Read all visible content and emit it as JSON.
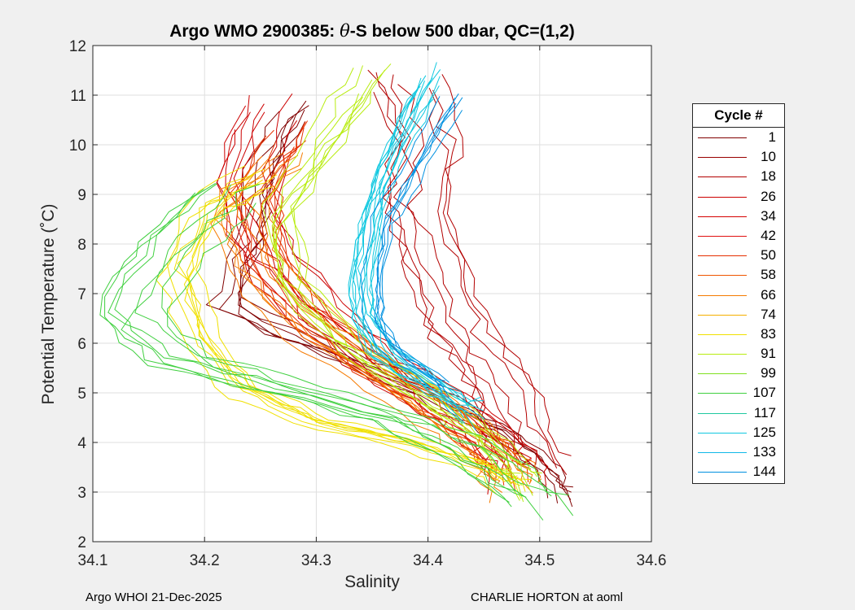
{
  "chart_data": {
    "type": "line",
    "title_prefix": "Argo WMO 2900385: ",
    "title_theta": "θ",
    "title_suffix": "-S below 500 dbar,  QC=(1,2)",
    "xlabel": "Salinity",
    "ylabel": "Potential Temperature (˚C)",
    "xlim": [
      34.1,
      34.6
    ],
    "ylim": [
      2,
      12
    ],
    "xticks": [
      "34.1",
      "34.2",
      "34.3",
      "34.4",
      "34.5",
      "34.6"
    ],
    "yticks": [
      "2",
      "3",
      "4",
      "5",
      "6",
      "7",
      "8",
      "9",
      "10",
      "11",
      "12"
    ],
    "grid": true,
    "legend_title": "Cycle #",
    "legend_position": "right-outside",
    "legend": [
      {
        "label": "1",
        "color": "#800000"
      },
      {
        "label": "10",
        "color": "#990000"
      },
      {
        "label": "18",
        "color": "#b30000"
      },
      {
        "label": "26",
        "color": "#cc0000"
      },
      {
        "label": "34",
        "color": "#d60000"
      },
      {
        "label": "42",
        "color": "#e01010"
      },
      {
        "label": "50",
        "color": "#e53000"
      },
      {
        "label": "58",
        "color": "#ef5500"
      },
      {
        "label": "66",
        "color": "#f57a00"
      },
      {
        "label": "74",
        "color": "#f5b000"
      },
      {
        "label": "83",
        "color": "#f0e000"
      },
      {
        "label": "91",
        "color": "#b8ec10"
      },
      {
        "label": "99",
        "color": "#80e020"
      },
      {
        "label": "107",
        "color": "#40d040"
      },
      {
        "label": "117",
        "color": "#20c8a0"
      },
      {
        "label": "125",
        "color": "#10c8e0"
      },
      {
        "label": "133",
        "color": "#10b8e8"
      },
      {
        "label": "144",
        "color": "#0090e0"
      }
    ],
    "series_groups": [
      {
        "color": "#800000",
        "count": 6,
        "spread_s": 0.025,
        "spread_t": 0.4,
        "points": [
          [
            34.28,
            10.8
          ],
          [
            34.25,
            9.6
          ],
          [
            34.24,
            8.2
          ],
          [
            34.22,
            6.8
          ],
          [
            34.32,
            5.8
          ],
          [
            34.4,
            5.0
          ],
          [
            34.46,
            4.3
          ],
          [
            34.5,
            3.6
          ],
          [
            34.52,
            3.0
          ]
        ]
      },
      {
        "color": "#b30000",
        "count": 8,
        "spread_s": 0.03,
        "spread_t": 0.3,
        "points": [
          [
            34.38,
            11.3
          ],
          [
            34.4,
            10.0
          ],
          [
            34.39,
            8.8
          ],
          [
            34.41,
            7.5
          ],
          [
            34.43,
            6.3
          ],
          [
            34.46,
            5.4
          ],
          [
            34.48,
            4.4
          ],
          [
            34.5,
            3.6
          ]
        ]
      },
      {
        "color": "#cc0000",
        "count": 8,
        "spread_s": 0.03,
        "spread_t": 0.4,
        "points": [
          [
            34.26,
            10.7
          ],
          [
            34.24,
            9.2
          ],
          [
            34.26,
            7.8
          ],
          [
            34.31,
            6.6
          ],
          [
            34.37,
            5.5
          ],
          [
            34.43,
            4.6
          ],
          [
            34.47,
            3.9
          ],
          [
            34.48,
            3.3
          ]
        ]
      },
      {
        "color": "#e53000",
        "count": 8,
        "spread_s": 0.025,
        "spread_t": 0.3,
        "points": [
          [
            34.28,
            10.2
          ],
          [
            34.25,
            9.0
          ],
          [
            34.26,
            7.6
          ],
          [
            34.3,
            6.4
          ],
          [
            34.36,
            5.4
          ],
          [
            34.42,
            4.6
          ],
          [
            34.46,
            3.9
          ],
          [
            34.48,
            3.3
          ]
        ]
      },
      {
        "color": "#f57a00",
        "count": 8,
        "spread_s": 0.025,
        "spread_t": 0.3,
        "points": [
          [
            34.27,
            9.6
          ],
          [
            34.23,
            8.6
          ],
          [
            34.25,
            7.4
          ],
          [
            34.3,
            6.2
          ],
          [
            34.37,
            5.2
          ],
          [
            34.43,
            4.3
          ],
          [
            34.47,
            3.5
          ],
          [
            34.48,
            3.0
          ]
        ]
      },
      {
        "color": "#f0e000",
        "count": 8,
        "spread_s": 0.02,
        "spread_t": 0.3,
        "points": [
          [
            34.25,
            9.3
          ],
          [
            34.2,
            8.6
          ],
          [
            34.18,
            7.4
          ],
          [
            34.2,
            6.0
          ],
          [
            34.24,
            5.0
          ],
          [
            34.3,
            4.4
          ],
          [
            34.38,
            4.0
          ],
          [
            34.45,
            3.5
          ],
          [
            34.48,
            3.1
          ]
        ]
      },
      {
        "color": "#b8ec10",
        "count": 8,
        "spread_s": 0.025,
        "spread_t": 0.4,
        "points": [
          [
            34.34,
            11.4
          ],
          [
            34.3,
            10.0
          ],
          [
            34.26,
            8.6
          ],
          [
            34.27,
            7.2
          ],
          [
            34.32,
            6.0
          ],
          [
            34.39,
            5.0
          ],
          [
            34.45,
            4.0
          ],
          [
            34.48,
            3.2
          ]
        ]
      },
      {
        "color": "#40d040",
        "count": 8,
        "spread_s": 0.03,
        "spread_t": 0.3,
        "points": [
          [
            34.22,
            9.0
          ],
          [
            34.17,
            8.0
          ],
          [
            34.13,
            6.5
          ],
          [
            34.18,
            5.6
          ],
          [
            34.28,
            5.0
          ],
          [
            34.38,
            4.4
          ],
          [
            34.45,
            3.6
          ],
          [
            34.5,
            2.7
          ]
        ]
      },
      {
        "color": "#10c8e0",
        "count": 12,
        "spread_s": 0.012,
        "spread_t": 0.35,
        "points": [
          [
            34.4,
            11.3
          ],
          [
            34.37,
            10.0
          ],
          [
            34.35,
            8.8
          ],
          [
            34.34,
            7.6
          ],
          [
            34.34,
            6.6
          ],
          [
            34.36,
            5.8
          ],
          [
            34.4,
            5.2
          ],
          [
            34.44,
            4.6
          ]
        ]
      },
      {
        "color": "#0090e0",
        "count": 6,
        "spread_s": 0.01,
        "spread_t": 0.3,
        "points": [
          [
            34.42,
            11.0
          ],
          [
            34.39,
            9.8
          ],
          [
            34.36,
            8.6
          ],
          [
            34.35,
            7.4
          ],
          [
            34.35,
            6.5
          ],
          [
            34.37,
            5.8
          ],
          [
            34.41,
            5.2
          ]
        ]
      }
    ]
  },
  "footer": {
    "left": "Argo WHOI 21-Dec-2025",
    "right": "CHARLIE HORTON at aoml"
  }
}
